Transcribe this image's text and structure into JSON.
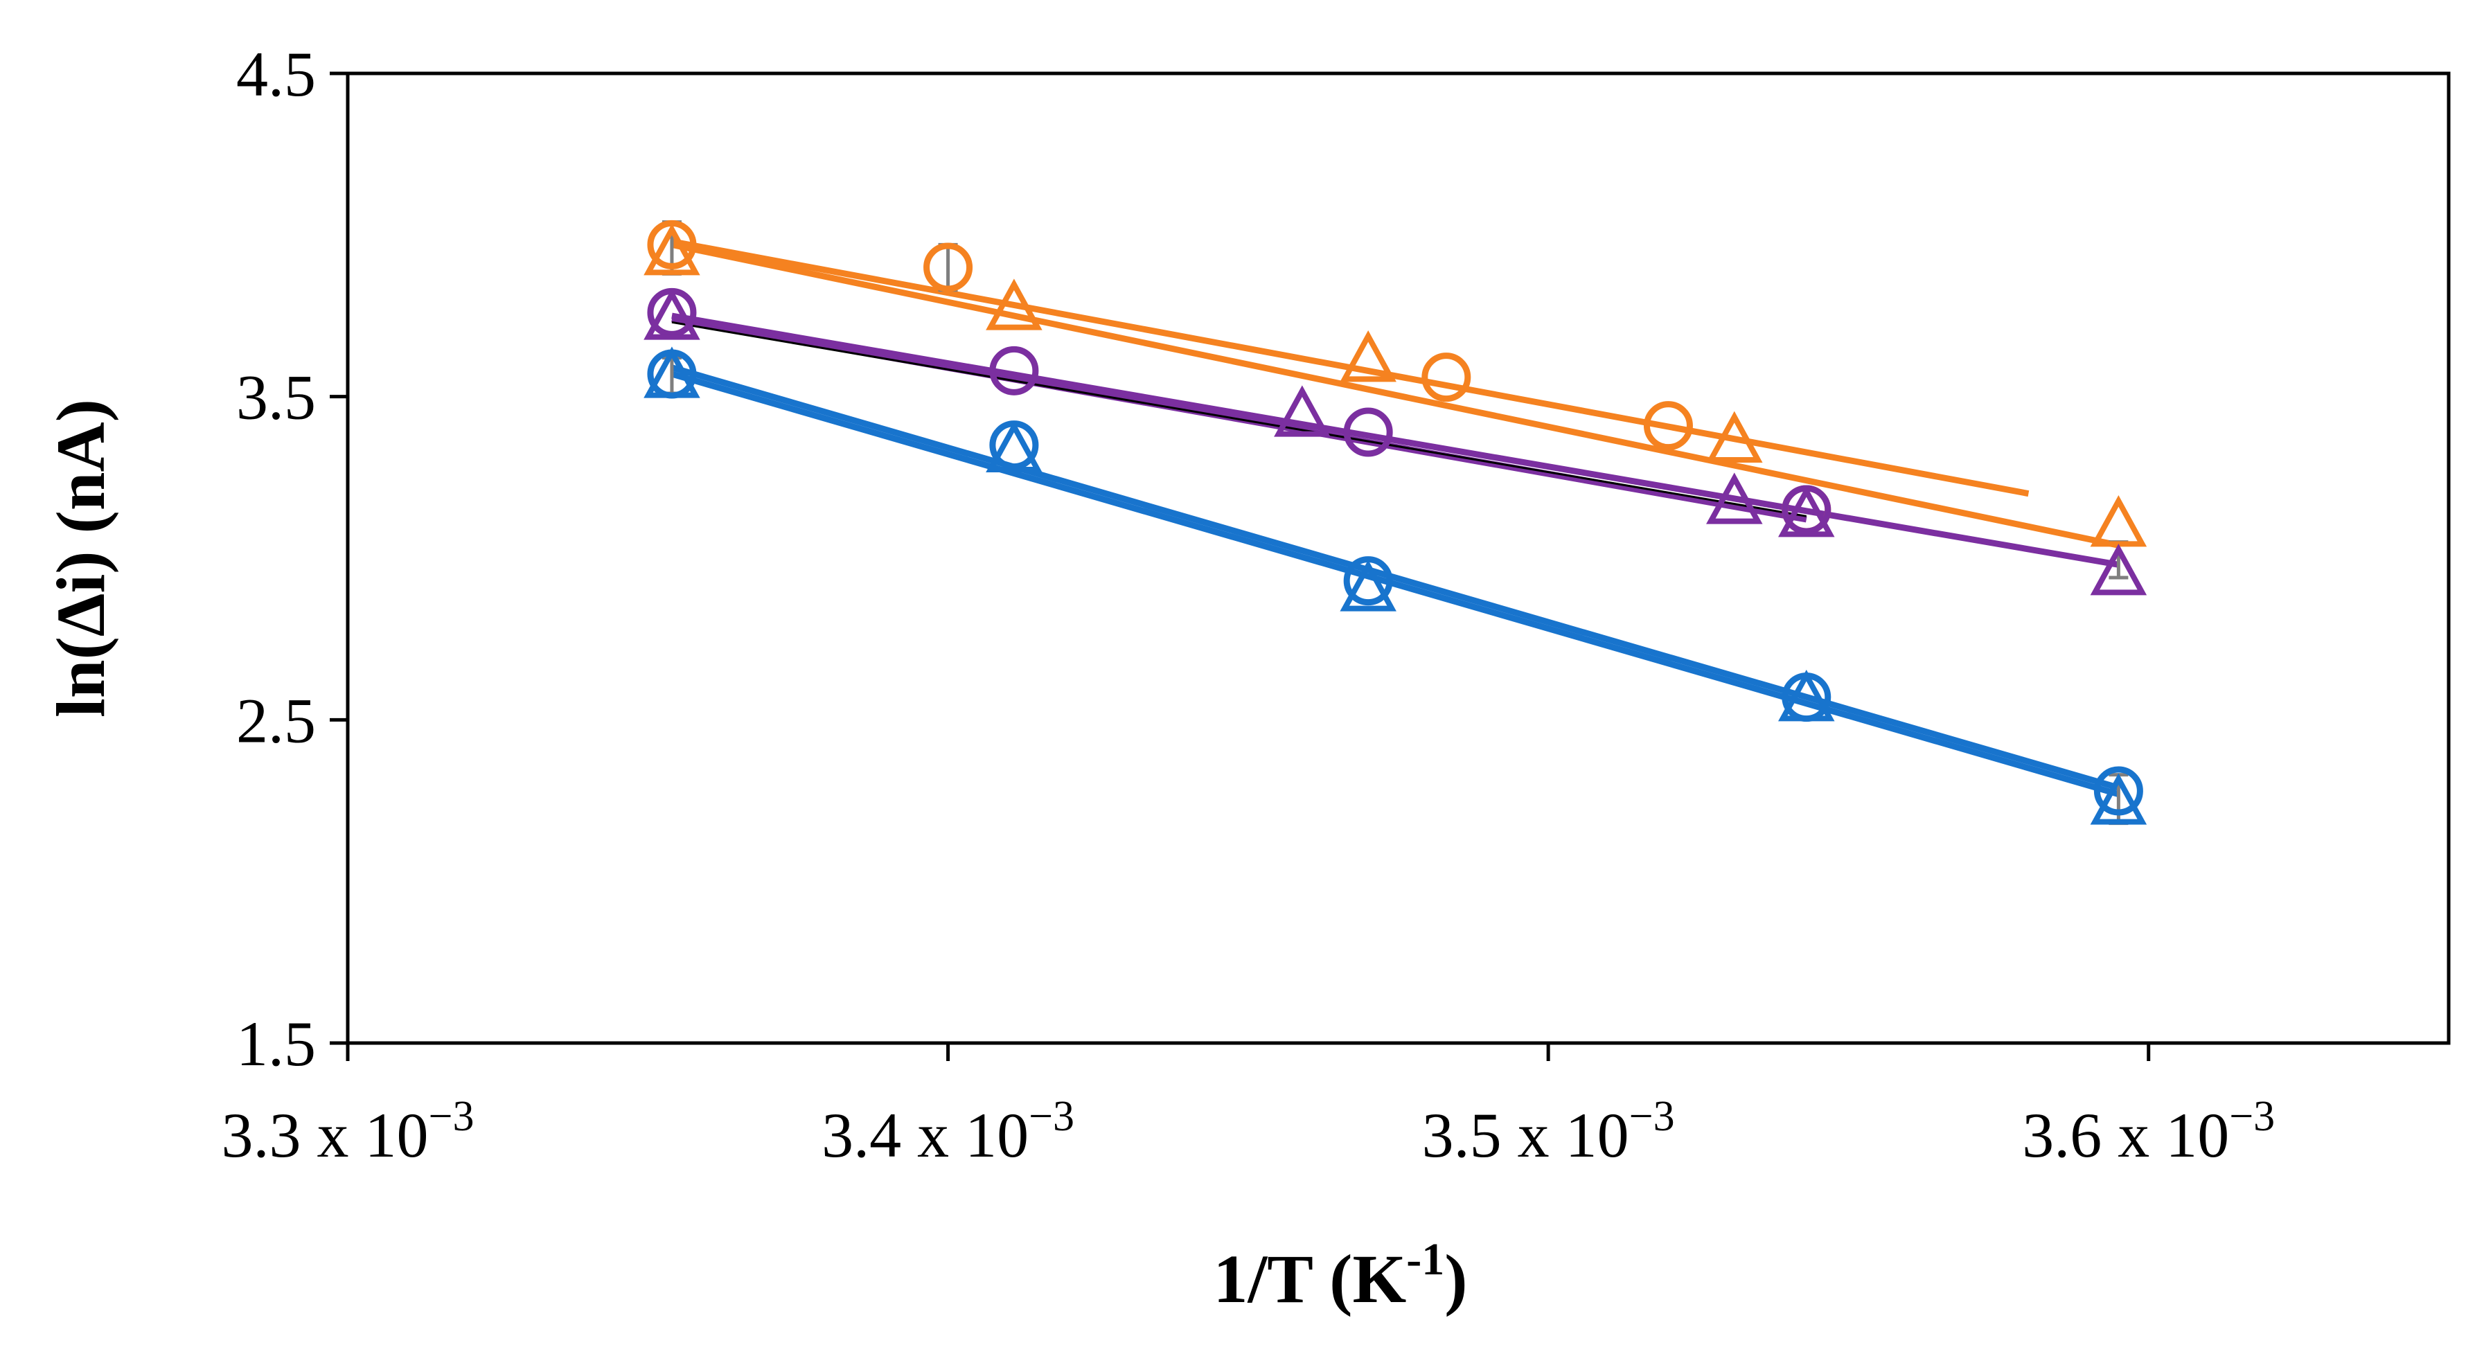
{
  "chart_data": {
    "type": "scatter",
    "title": "",
    "xlabel": {
      "main": "1/T (K",
      "sup": "-1",
      "end": ")"
    },
    "ylabel": "ln(Δi) (nA)",
    "xlim": [
      0.0033,
      0.00365
    ],
    "ylim": [
      1.5,
      4.5
    ],
    "grid": false,
    "legend": "none",
    "x_ticks": [
      {
        "value": 0.0033,
        "mantissa": "3.3",
        "times": "x 10",
        "exp": "−3"
      },
      {
        "value": 0.0034,
        "mantissa": "3.4",
        "times": "x 10",
        "exp": "−3"
      },
      {
        "value": 0.0035,
        "mantissa": "3.5",
        "times": "x 10",
        "exp": "−3"
      },
      {
        "value": 0.0036,
        "mantissa": "3.6",
        "times": "x 10",
        "exp": "−3"
      }
    ],
    "y_ticks": [
      {
        "value": 1.5,
        "label": "1.5"
      },
      {
        "value": 2.5,
        "label": "2.5"
      },
      {
        "value": 3.5,
        "label": "3.5"
      },
      {
        "value": 4.5,
        "label": "4.5"
      }
    ],
    "series": [
      {
        "name": "orange circles",
        "marker": "circle",
        "color": "#F58220",
        "x": [
          0.003354,
          0.0034,
          0.003483,
          0.00352,
          0.003543
        ],
        "y": [
          3.97,
          3.9,
          3.56,
          3.41,
          3.15
        ],
        "fit": {
          "x": [
            0.003354,
            0.00358
          ],
          "y": [
            3.98,
            3.2
          ]
        }
      },
      {
        "name": "orange triangles",
        "marker": "triangle",
        "color": "#F58220",
        "x": [
          0.003354,
          0.003411,
          0.00347,
          0.003531,
          0.003595
        ],
        "y": [
          3.94,
          3.77,
          3.61,
          3.36,
          3.1
        ],
        "fit": {
          "x": [
            0.003354,
            0.003595
          ],
          "y": [
            3.97,
            3.04
          ]
        }
      },
      {
        "name": "purple circles",
        "marker": "circle",
        "color": "#7B2FA0",
        "x": [
          0.003354,
          0.003411,
          0.00347,
          0.003543
        ],
        "y": [
          3.76,
          3.58,
          3.39,
          3.15
        ],
        "fit": {
          "x": [
            0.003354,
            0.003543
          ],
          "y": [
            3.74,
            3.12
          ]
        }
      },
      {
        "name": "purple triangles",
        "marker": "triangle",
        "color": "#7B2FA0",
        "x": [
          0.003354,
          0.003459,
          0.003531,
          0.003543,
          0.003595
        ],
        "y": [
          3.74,
          3.44,
          3.17,
          3.13,
          2.95
        ],
        "fit": {
          "x": [
            0.003354,
            0.003595
          ],
          "y": [
            3.75,
            2.98
          ]
        }
      },
      {
        "name": "blue circles",
        "marker": "circle",
        "color": "#1874CD",
        "x": [
          0.003354,
          0.003411,
          0.00347,
          0.003543,
          0.003595
        ],
        "y": [
          3.57,
          3.35,
          2.93,
          2.57,
          2.28
        ],
        "fit": {
          "x": [
            0.003354,
            0.003595
          ],
          "y": [
            3.59,
            2.29
          ]
        }
      },
      {
        "name": "blue triangles",
        "marker": "triangle",
        "color": "#1874CD",
        "x": [
          0.003354,
          0.003411,
          0.00347,
          0.003543,
          0.003595
        ],
        "y": [
          3.56,
          3.33,
          2.9,
          2.56,
          2.24
        ],
        "fit": {
          "x": [
            0.003354,
            0.003595
          ],
          "y": [
            3.57,
            2.27
          ]
        }
      }
    ],
    "error_bars": [
      {
        "x": 0.003354,
        "low": 3.88,
        "high": 4.04
      },
      {
        "x": 0.0034,
        "low": 3.83,
        "high": 3.97
      },
      {
        "x": 0.003354,
        "low": 3.51,
        "high": 3.62
      },
      {
        "x": 0.003595,
        "low": 2.18,
        "high": 2.33
      },
      {
        "x": 0.003595,
        "low": 2.94,
        "high": 3.05
      }
    ],
    "reference_line": {
      "color": "#000000",
      "x": [
        0.003354,
        0.003543
      ],
      "y": [
        3.73,
        3.13
      ]
    },
    "colors": {
      "axis": "#000000",
      "error_bar": "#7F7F7F"
    }
  }
}
